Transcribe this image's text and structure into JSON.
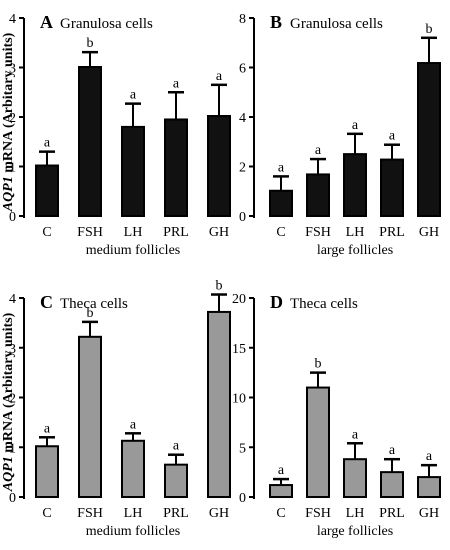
{
  "ylabel": {
    "gene": "AQP1",
    "rest": " mRNA (Arbitary units)"
  },
  "chart_data": [
    {
      "type": "bar",
      "panel": "A",
      "title": "Granulosa cells",
      "xlabel": "medium follicles",
      "ylabel": "AQP1 mRNA (Arbitary units)",
      "ylim": [
        0,
        4
      ],
      "yticks": [
        0,
        1,
        2,
        3,
        4
      ],
      "categories": [
        "C",
        "FSH",
        "LH",
        "PRL",
        "GH"
      ],
      "values": [
        1.02,
        3.01,
        1.8,
        1.95,
        2.02
      ],
      "errors": [
        0.28,
        0.3,
        0.47,
        0.55,
        0.63
      ],
      "significance": [
        "a",
        "b",
        "a",
        "a",
        "a"
      ],
      "bar_color": "#111111"
    },
    {
      "type": "bar",
      "panel": "B",
      "title": "Granulosa cells",
      "xlabel": "large follicles",
      "ylim": [
        0,
        8
      ],
      "yticks": [
        0,
        2,
        4,
        6,
        8
      ],
      "categories": [
        "C",
        "FSH",
        "LH",
        "PRL",
        "GH"
      ],
      "values": [
        1.02,
        1.68,
        2.5,
        2.28,
        6.18
      ],
      "errors": [
        0.58,
        0.62,
        0.82,
        0.6,
        1.02
      ],
      "significance": [
        "a",
        "a",
        "a",
        "a",
        "b"
      ],
      "bar_color": "#111111"
    },
    {
      "type": "bar",
      "panel": "C",
      "title": "Theca cells",
      "xlabel": "medium follicles",
      "ylabel": "AQP1 mRNA (Arbitary units)",
      "ylim": [
        0,
        4
      ],
      "yticks": [
        0,
        1,
        2,
        3,
        4
      ],
      "categories": [
        "C",
        "FSH",
        "LH",
        "PRL",
        "GH"
      ],
      "values": [
        1.02,
        3.22,
        1.13,
        0.65,
        3.72
      ],
      "errors": [
        0.18,
        0.3,
        0.15,
        0.2,
        0.35
      ],
      "significance": [
        "a",
        "b",
        "a",
        "a",
        "b"
      ],
      "bar_color": "#999999"
    },
    {
      "type": "bar",
      "panel": "D",
      "title": "Theca cells",
      "xlabel": "large follicles",
      "ylim": [
        0,
        20
      ],
      "yticks": [
        0,
        5,
        10,
        15,
        20
      ],
      "categories": [
        "C",
        "FSH",
        "LH",
        "PRL",
        "GH"
      ],
      "values": [
        1.2,
        11.0,
        3.8,
        2.5,
        2.0
      ],
      "errors": [
        0.6,
        1.5,
        1.6,
        1.3,
        1.2
      ],
      "significance": [
        "a",
        "b",
        "a",
        "a",
        "a"
      ],
      "bar_color": "#999999"
    }
  ]
}
